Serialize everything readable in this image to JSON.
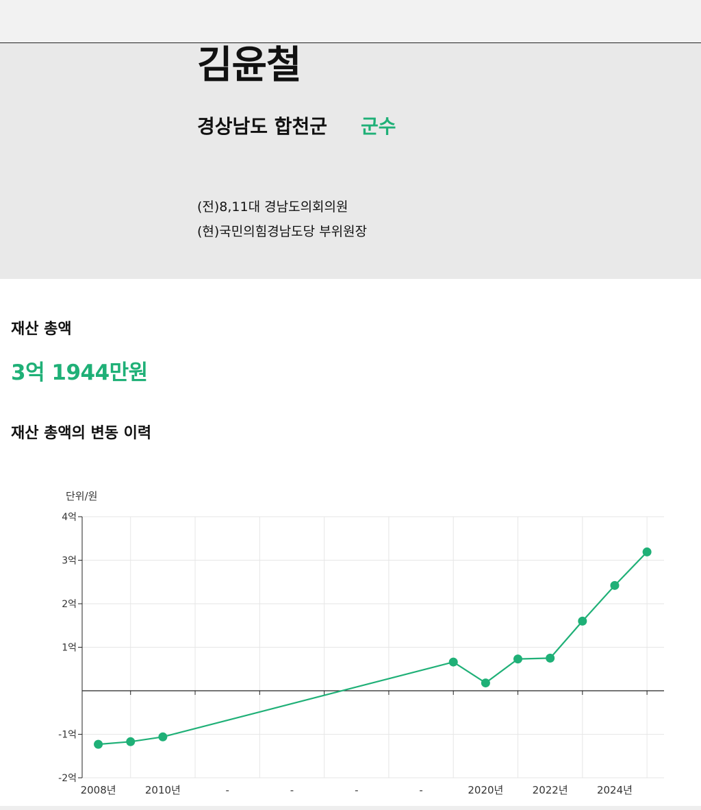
{
  "profile": {
    "name": "김윤철",
    "region": "경상남도 합천군",
    "position": "군수",
    "career": [
      "(전)8,11대 경남도의회의원",
      "(현)국민의힘경남도당 부위원장"
    ]
  },
  "assets": {
    "total_label": "재산 총액",
    "total_value": "3억 1944만원",
    "history_label": "재산 총액의 변동 이력"
  },
  "colors": {
    "accent": "#1fb077",
    "grid": "#e6e6e6",
    "axis": "#222222"
  },
  "chart_data": {
    "type": "line",
    "unit_label": "단위/원",
    "x_tick_labels": [
      "2008년",
      "2010년",
      "-",
      "-",
      "-",
      "-",
      "2020년",
      "2022년",
      "2024년"
    ],
    "y_ticks": [
      4,
      3,
      2,
      1,
      -1,
      -2
    ],
    "y_tick_labels": [
      "4억",
      "3억",
      "2억",
      "1억",
      "-1억",
      "-2억"
    ],
    "ylim": [
      -2,
      4
    ],
    "x": [
      2008,
      2009,
      2010,
      2019,
      2020,
      2021,
      2022,
      2023,
      2024,
      2025
    ],
    "y": [
      -1.23,
      -1.17,
      -1.06,
      0.66,
      0.18,
      0.73,
      0.75,
      1.6,
      2.42,
      3.19
    ],
    "grid": true
  }
}
